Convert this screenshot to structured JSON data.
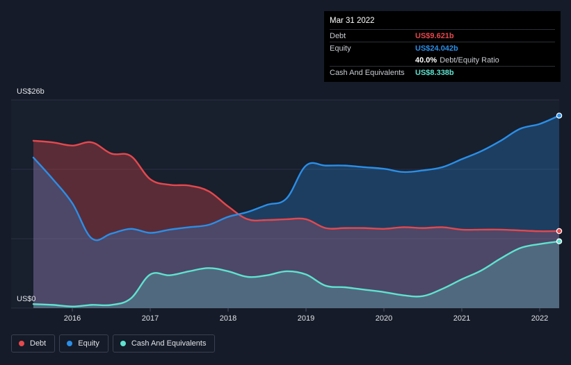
{
  "tooltip": {
    "date": "Mar 31 2022",
    "rows": [
      {
        "name": "Debt",
        "value": "US$9.621b",
        "color": "#e5484d"
      },
      {
        "name": "Equity",
        "value": "US$24.042b",
        "color": "#2a8fe8"
      },
      {
        "ratio_value": "40.0%",
        "ratio_label": "Debt/Equity Ratio"
      },
      {
        "name": "Cash And Equivalents",
        "value": "US$8.338b",
        "color": "#5ee3cf"
      }
    ]
  },
  "legend": [
    {
      "label": "Debt",
      "color": "#e5484d"
    },
    {
      "label": "Equity",
      "color": "#2a8fe8"
    },
    {
      "label": "Cash And Equivalents",
      "color": "#5ee3cf"
    }
  ],
  "chart_data": {
    "type": "area",
    "ylim": [
      0,
      26
    ],
    "y_top_label": "US$26b",
    "y_bottom_label": "US$0",
    "xlim": [
      2015.5,
      2022.25
    ],
    "x_ticks": [
      2016,
      2017,
      2018,
      2019,
      2020,
      2021,
      2022
    ],
    "x_tick_labels": [
      "2016",
      "2017",
      "2018",
      "2019",
      "2020",
      "2021",
      "2022"
    ],
    "series": [
      {
        "name": "Debt",
        "color": "#e5484d",
        "points": [
          [
            2015.5,
            20.9
          ],
          [
            2015.75,
            20.7
          ],
          [
            2016.0,
            20.3
          ],
          [
            2016.25,
            20.7
          ],
          [
            2016.5,
            19.3
          ],
          [
            2016.75,
            19.0
          ],
          [
            2017.0,
            16.1
          ],
          [
            2017.25,
            15.4
          ],
          [
            2017.5,
            15.3
          ],
          [
            2017.75,
            14.6
          ],
          [
            2018.0,
            12.7
          ],
          [
            2018.25,
            11.1
          ],
          [
            2018.5,
            11.0
          ],
          [
            2018.75,
            11.1
          ],
          [
            2019.0,
            11.1
          ],
          [
            2019.25,
            10.0
          ],
          [
            2019.5,
            10.0
          ],
          [
            2019.75,
            10.0
          ],
          [
            2020.0,
            9.9
          ],
          [
            2020.25,
            10.1
          ],
          [
            2020.5,
            10.0
          ],
          [
            2020.75,
            10.1
          ],
          [
            2021.0,
            9.8
          ],
          [
            2021.25,
            9.8
          ],
          [
            2021.5,
            9.8
          ],
          [
            2021.75,
            9.7
          ],
          [
            2022.0,
            9.6
          ],
          [
            2022.25,
            9.621
          ]
        ]
      },
      {
        "name": "Equity",
        "color": "#2a8fe8",
        "points": [
          [
            2015.5,
            18.8
          ],
          [
            2015.75,
            16.1
          ],
          [
            2016.0,
            13.1
          ],
          [
            2016.25,
            8.7
          ],
          [
            2016.5,
            9.3
          ],
          [
            2016.75,
            9.9
          ],
          [
            2017.0,
            9.4
          ],
          [
            2017.25,
            9.8
          ],
          [
            2017.5,
            10.1
          ],
          [
            2017.75,
            10.4
          ],
          [
            2018.0,
            11.4
          ],
          [
            2018.25,
            12.0
          ],
          [
            2018.5,
            12.9
          ],
          [
            2018.75,
            13.7
          ],
          [
            2019.0,
            17.8
          ],
          [
            2019.25,
            17.8
          ],
          [
            2019.5,
            17.8
          ],
          [
            2019.75,
            17.6
          ],
          [
            2020.0,
            17.4
          ],
          [
            2020.25,
            17.0
          ],
          [
            2020.5,
            17.2
          ],
          [
            2020.75,
            17.6
          ],
          [
            2021.0,
            18.6
          ],
          [
            2021.25,
            19.6
          ],
          [
            2021.5,
            20.9
          ],
          [
            2021.75,
            22.4
          ],
          [
            2022.0,
            23.0
          ],
          [
            2022.25,
            24.042
          ]
        ]
      },
      {
        "name": "Cash And Equivalents",
        "color": "#5ee3cf",
        "points": [
          [
            2015.5,
            0.5
          ],
          [
            2015.75,
            0.4
          ],
          [
            2016.0,
            0.2
          ],
          [
            2016.25,
            0.4
          ],
          [
            2016.5,
            0.4
          ],
          [
            2016.75,
            1.2
          ],
          [
            2017.0,
            4.2
          ],
          [
            2017.25,
            4.1
          ],
          [
            2017.5,
            4.6
          ],
          [
            2017.75,
            5.0
          ],
          [
            2018.0,
            4.6
          ],
          [
            2018.25,
            3.9
          ],
          [
            2018.5,
            4.1
          ],
          [
            2018.75,
            4.6
          ],
          [
            2019.0,
            4.2
          ],
          [
            2019.25,
            2.8
          ],
          [
            2019.5,
            2.6
          ],
          [
            2019.75,
            2.3
          ],
          [
            2020.0,
            2.0
          ],
          [
            2020.25,
            1.6
          ],
          [
            2020.5,
            1.5
          ],
          [
            2020.75,
            2.4
          ],
          [
            2021.0,
            3.6
          ],
          [
            2021.25,
            4.7
          ],
          [
            2021.5,
            6.2
          ],
          [
            2021.75,
            7.5
          ],
          [
            2022.0,
            8.0
          ],
          [
            2022.25,
            8.338
          ]
        ]
      }
    ]
  }
}
